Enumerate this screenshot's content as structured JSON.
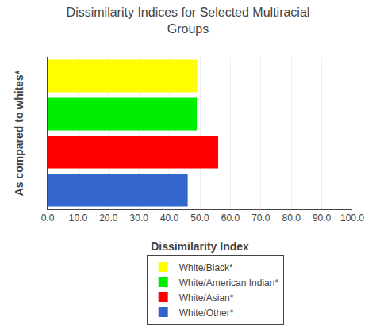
{
  "chart_data": {
    "type": "bar",
    "orientation": "horizontal",
    "title": "Dissimilarity Indices for Selected Multiracial\nGroups",
    "xlabel": "Dissimilarity Index",
    "ylabel": "As compared to whites*",
    "categories": [
      "White/Other*",
      "White/Asian*",
      "White/American Indian*",
      "White/Black*"
    ],
    "values": [
      46.0,
      56.0,
      49.0,
      49.0
    ],
    "colors": [
      "#3366cc",
      "#ff0000",
      "#00ee00",
      "#ffff00"
    ],
    "xlim": [
      0,
      100
    ],
    "xticks": [
      {
        "value": 0,
        "label": "0.0"
      },
      {
        "value": 10,
        "label": "10.0"
      },
      {
        "value": 20,
        "label": "20.0"
      },
      {
        "value": 30,
        "label": "30.0"
      },
      {
        "value": 40,
        "label": "40.0"
      },
      {
        "value": 50,
        "label": "50.0"
      },
      {
        "value": 60,
        "label": "60.0"
      },
      {
        "value": 70,
        "label": "70.0"
      },
      {
        "value": 80,
        "label": "80.0"
      },
      {
        "value": 90,
        "label": "90.0"
      },
      {
        "value": 100,
        "label": "100.0"
      }
    ],
    "grid": true,
    "tick_labels": "x",
    "legend": "bottom"
  }
}
